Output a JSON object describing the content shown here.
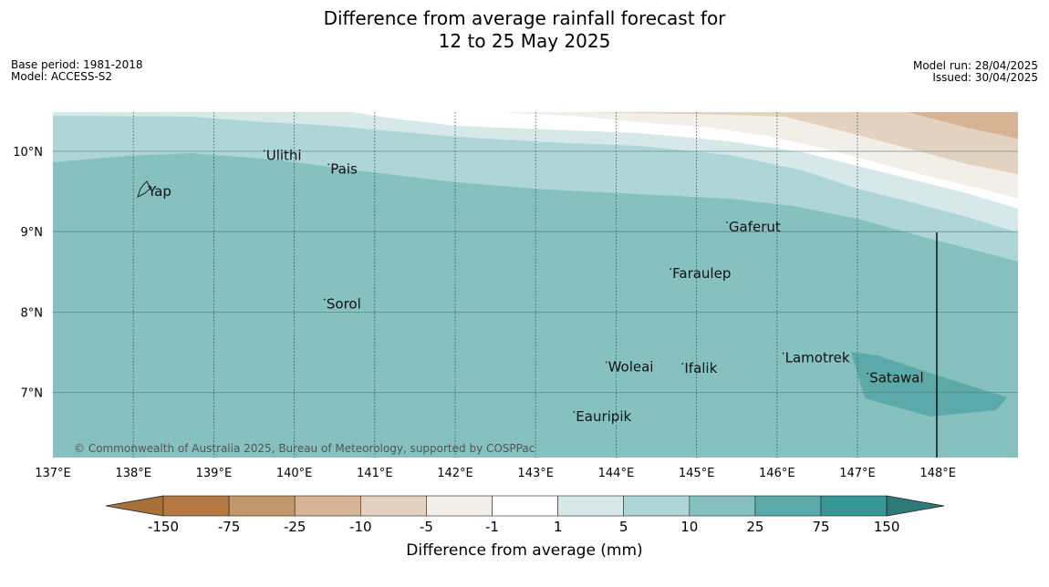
{
  "title": {
    "line1": "Difference from average rainfall forecast for",
    "line2": "12 to 25 May 2025"
  },
  "meta_left": {
    "base_period": "Base period: 1981-2018",
    "model": "Model: ACCESS-S2"
  },
  "meta_right": {
    "model_run": "Model run: 28/04/2025",
    "issued": "Issued: 30/04/2025"
  },
  "map": {
    "lon_labels": [
      "137°E",
      "138°E",
      "139°E",
      "140°E",
      "141°E",
      "142°E",
      "143°E",
      "144°E",
      "145°E",
      "146°E",
      "147°E",
      "148°E"
    ],
    "lat_labels": [
      "10°N",
      "9°N",
      "8°N",
      "7°N"
    ],
    "places": [
      {
        "name": "Yap",
        "lon": 138.18,
        "lat": 9.5
      },
      {
        "name": "Ulithi",
        "lon": 139.65,
        "lat": 9.95
      },
      {
        "name": "Pais",
        "lon": 140.45,
        "lat": 9.78
      },
      {
        "name": "Gaferut",
        "lon": 145.4,
        "lat": 9.06
      },
      {
        "name": "Faraulep",
        "lon": 144.7,
        "lat": 8.48
      },
      {
        "name": "Sorol",
        "lon": 140.4,
        "lat": 8.1
      },
      {
        "name": "Woleai",
        "lon": 143.9,
        "lat": 7.32
      },
      {
        "name": "Ifalik",
        "lon": 144.85,
        "lat": 7.3
      },
      {
        "name": "Lamotrek",
        "lon": 146.1,
        "lat": 7.43
      },
      {
        "name": "Satawal",
        "lon": 147.15,
        "lat": 7.18
      },
      {
        "name": "Eauripik",
        "lon": 143.5,
        "lat": 6.7
      }
    ],
    "credit": "© Commonwealth of Australia 2025, Bureau of Meteorology, supported by COSPPac"
  },
  "legend": {
    "title": "Difference from average (mm)",
    "ticks": [
      "-150",
      "-75",
      "-25",
      "-10",
      "-5",
      "-1",
      "1",
      "5",
      "10",
      "25",
      "75",
      "150"
    ],
    "colors": [
      "#a9703a",
      "#b57842",
      "#c3976d",
      "#d5b394",
      "#e4d2c1",
      "#f2eee8",
      "#ffffff",
      "#d6e9e8",
      "#aed6d6",
      "#86c0bf",
      "#5baaa9",
      "#369896",
      "#2c7b79"
    ]
  }
}
